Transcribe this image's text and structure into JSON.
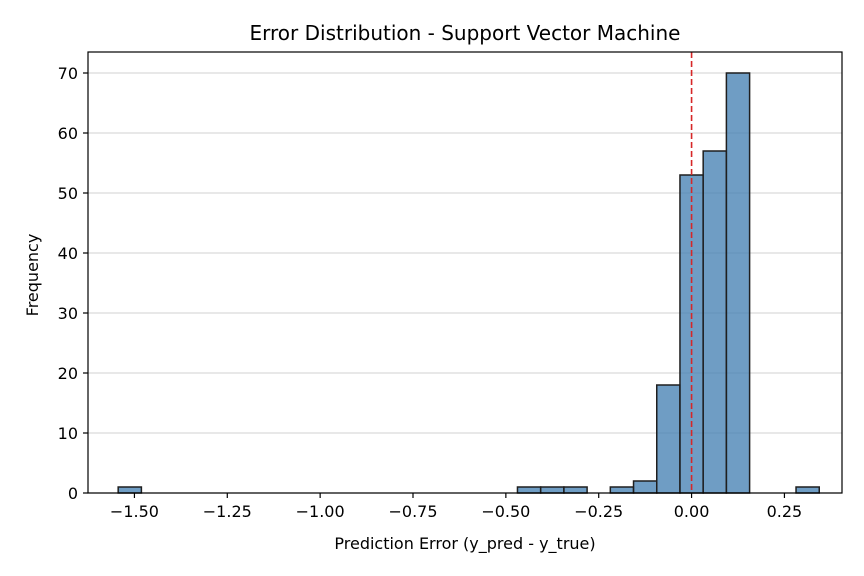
{
  "chart_data": {
    "type": "bar",
    "title": "Error Distribution - Support Vector Machine",
    "xlabel": "Prediction Error (y_pred - y_true)",
    "ylabel": "Frequency",
    "xlim": [
      -1.625,
      0.405
    ],
    "ylim": [
      0,
      73.5
    ],
    "grid": "y",
    "bin_width": 0.0625,
    "bins": [
      {
        "center": -1.5125,
        "value": 1
      },
      {
        "center": -0.4375,
        "value": 1
      },
      {
        "center": -0.375,
        "value": 1
      },
      {
        "center": -0.3125,
        "value": 1
      },
      {
        "center": -0.1875,
        "value": 1
      },
      {
        "center": -0.125,
        "value": 2
      },
      {
        "center": -0.0625,
        "value": 18
      },
      {
        "center": 0.0,
        "value": 53
      },
      {
        "center": 0.0625,
        "value": 57
      },
      {
        "center": 0.125,
        "value": 70
      },
      {
        "center": 0.3125,
        "value": 1
      }
    ],
    "x_ticks": [
      {
        "value": -1.5,
        "label": "−1.50"
      },
      {
        "value": -1.25,
        "label": "−1.25"
      },
      {
        "value": -1.0,
        "label": "−1.00"
      },
      {
        "value": -0.75,
        "label": "−0.75"
      },
      {
        "value": -0.5,
        "label": "−0.50"
      },
      {
        "value": -0.25,
        "label": "−0.25"
      },
      {
        "value": 0.0,
        "label": "0.00"
      },
      {
        "value": 0.25,
        "label": "0.25"
      }
    ],
    "y_ticks": [
      {
        "value": 0,
        "label": "0"
      },
      {
        "value": 10,
        "label": "10"
      },
      {
        "value": 20,
        "label": "20"
      },
      {
        "value": 30,
        "label": "30"
      },
      {
        "value": 40,
        "label": "40"
      },
      {
        "value": 50,
        "label": "50"
      },
      {
        "value": 60,
        "label": "60"
      },
      {
        "value": 70,
        "label": "70"
      }
    ],
    "reference_line": {
      "x": 0.0,
      "style": "dashed",
      "color": "#d62728"
    },
    "colors": {
      "bar_fill": "#4682b4",
      "bar_edge": "#1f1f1f",
      "grid": "#d9d9d9"
    }
  }
}
